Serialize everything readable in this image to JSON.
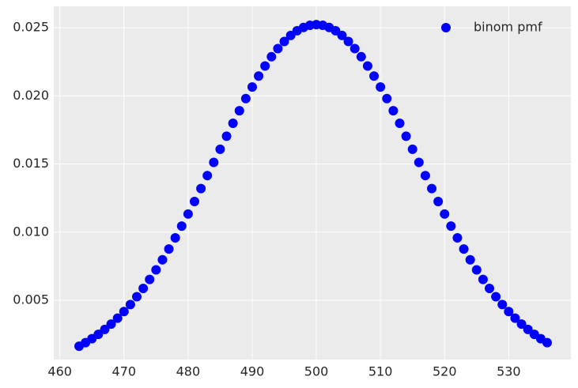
{
  "chart_data": {
    "type": "scatter",
    "x": [
      463,
      464,
      465,
      466,
      467,
      468,
      469,
      470,
      471,
      472,
      473,
      474,
      475,
      476,
      477,
      478,
      479,
      480,
      481,
      482,
      483,
      484,
      485,
      486,
      487,
      488,
      489,
      490,
      491,
      492,
      493,
      494,
      495,
      496,
      497,
      498,
      499,
      500,
      501,
      502,
      503,
      504,
      505,
      506,
      507,
      508,
      509,
      510,
      511,
      512,
      513,
      514,
      515,
      516,
      517,
      518,
      519,
      520,
      521,
      522,
      523,
      524,
      525,
      526,
      527,
      528,
      529,
      530,
      531,
      532,
      533,
      534,
      535,
      536
    ],
    "series": [
      {
        "name": "binom pmf",
        "color": "#0000ff",
        "values": [
          0.00163,
          0.00189,
          0.00218,
          0.0025,
          0.00286,
          0.00325,
          0.00369,
          0.00417,
          0.00469,
          0.00526,
          0.00587,
          0.00653,
          0.00723,
          0.00797,
          0.00876,
          0.00958,
          0.01044,
          0.01133,
          0.01225,
          0.0132,
          0.01415,
          0.01512,
          0.01608,
          0.01704,
          0.01799,
          0.01891,
          0.0198,
          0.02065,
          0.02145,
          0.02219,
          0.02287,
          0.02347,
          0.02399,
          0.02443,
          0.02478,
          0.02502,
          0.02518,
          0.02523,
          0.02518,
          0.02502,
          0.02478,
          0.02443,
          0.02399,
          0.02347,
          0.02287,
          0.02219,
          0.02145,
          0.02065,
          0.0198,
          0.01891,
          0.01799,
          0.01704,
          0.01608,
          0.01512,
          0.01415,
          0.0132,
          0.01225,
          0.01133,
          0.01044,
          0.00958,
          0.00876,
          0.00797,
          0.00723,
          0.00653,
          0.00587,
          0.00526,
          0.00469,
          0.00417,
          0.00369,
          0.00325,
          0.00286,
          0.0025,
          0.00218,
          0.00189
        ]
      }
    ],
    "xlim": [
      459.05,
      539.7
    ],
    "xticks": [
      460,
      470,
      480,
      490,
      500,
      510,
      520,
      530
    ],
    "ylim": [
      0.00065,
      0.02657
    ],
    "yticks": [
      0.005,
      {
        "value": 0.01,
        "label": "0.010"
      },
      0.015,
      {
        "value": 0.02,
        "label": "0.020"
      },
      0.025
    ],
    "grid": true,
    "legend": "upper right"
  }
}
